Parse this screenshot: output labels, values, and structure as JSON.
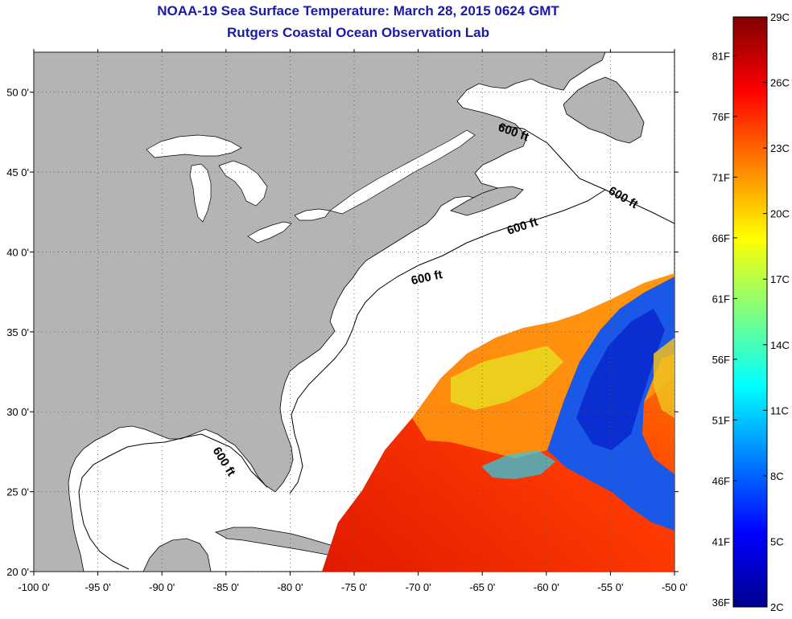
{
  "title": "NOAA-19 Sea Surface Temperature:  March 28, 2015 0624 GMT",
  "subtitle": "Rutgers Coastal Ocean Observation Lab",
  "map": {
    "lon_ticks": [
      "-100 0'",
      "-95 0'",
      "-90 0'",
      "-85 0'",
      "-80 0'",
      "-75 0'",
      "-70 0'",
      "-65 0'",
      "-60 0'",
      "-55 0'",
      "-50 0'"
    ],
    "lat_ticks": [
      "50 0'",
      "45 0'",
      "40 0'",
      "35 0'",
      "30 0'",
      "25 0'",
      "20 0'"
    ],
    "lon_range": [
      -100,
      -50
    ],
    "lat_range": [
      20,
      52.5
    ],
    "depth_label": "600 ft",
    "colors": {
      "land": "#b4b4b4",
      "ocean_no_data": "#ffffff",
      "title": "#1a1aa6"
    }
  },
  "colorbar": {
    "celsius_ticks": [
      "29C",
      "26C",
      "23C",
      "20C",
      "17C",
      "14C",
      "11C",
      "8C",
      "5C",
      "2C"
    ],
    "fahrenheit_ticks": [
      "81F",
      "76F",
      "71F",
      "66F",
      "61F",
      "56F",
      "51F",
      "46F",
      "41F",
      "36F"
    ],
    "range_c": [
      2,
      29
    ],
    "colormap": "jet"
  }
}
